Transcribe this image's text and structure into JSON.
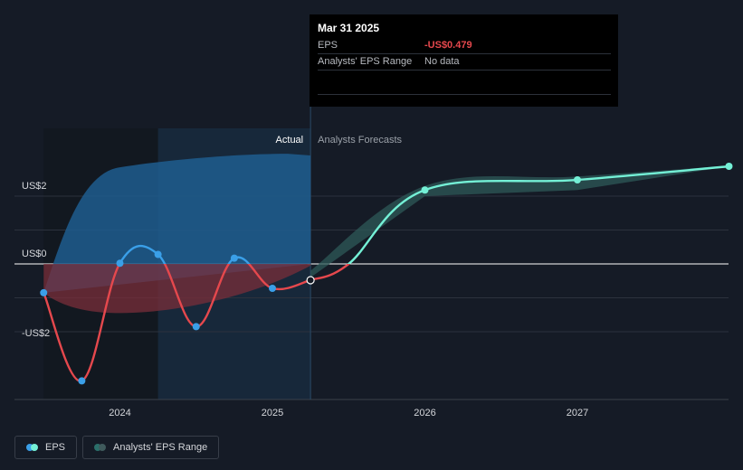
{
  "chart_data": {
    "type": "line",
    "y_axis": {
      "ticks": [
        {
          "value": 2,
          "label": "US$2"
        },
        {
          "value": 0,
          "label": "US$0"
        },
        {
          "value": -2,
          "label": "-US$2"
        }
      ],
      "ylim": [
        -4,
        4
      ]
    },
    "x_axis": {
      "ticks": [
        {
          "value": 2024,
          "label": "2024"
        },
        {
          "value": 2025,
          "label": "2025"
        },
        {
          "value": 2026,
          "label": "2026"
        },
        {
          "value": 2027,
          "label": "2027"
        }
      ],
      "xlim": [
        2023.0,
        2028.0
      ]
    },
    "divider": {
      "x": 2025.25,
      "left_label": "Actual",
      "right_label": "Analysts Forecasts"
    },
    "series": [
      {
        "name": "EPS",
        "color_pos": "#3a9fe8",
        "color_neg": "#e5484d",
        "points": [
          {
            "x": 2023.5,
            "y": -0.85
          },
          {
            "x": 2023.75,
            "y": -3.45
          },
          {
            "x": 2024.0,
            "y": 0.02
          },
          {
            "x": 2024.25,
            "y": 0.28
          },
          {
            "x": 2024.5,
            "y": -1.85
          },
          {
            "x": 2024.75,
            "y": 0.17
          },
          {
            "x": 2025.0,
            "y": -0.72
          },
          {
            "x": 2025.25,
            "y": -0.479
          }
        ]
      },
      {
        "name": "Analysts' EPS Range",
        "color": "#74f0d6",
        "points": [
          {
            "x": 2025.25,
            "y": -0.479
          },
          {
            "x": 2025.5,
            "y": 0.0
          },
          {
            "x": 2026.0,
            "y": 2.18
          },
          {
            "x": 2027.0,
            "y": 2.48
          },
          {
            "x": 2028.0,
            "y": 2.88
          }
        ],
        "band_high": [
          {
            "x": 2025.25,
            "y": -0.2
          },
          {
            "x": 2026.0,
            "y": 2.3
          },
          {
            "x": 2027.0,
            "y": 2.58
          },
          {
            "x": 2028.0,
            "y": 2.9
          }
        ],
        "band_low": [
          {
            "x": 2025.25,
            "y": -0.4
          },
          {
            "x": 2026.0,
            "y": 2.0
          },
          {
            "x": 2027.0,
            "y": 2.18
          },
          {
            "x": 2028.0,
            "y": 2.88
          }
        ]
      }
    ]
  },
  "tooltip": {
    "date": "Mar 31 2025",
    "rows": [
      {
        "label": "EPS",
        "value": "-US$0.479"
      },
      {
        "label": "Analysts' EPS Range",
        "value": "No data"
      }
    ]
  },
  "legend": [
    {
      "label": "EPS"
    },
    {
      "label": "Analysts' EPS Range"
    }
  ],
  "colors": {
    "background": "#151b26",
    "grid": "#2c323d",
    "zero_line": "#ffffff",
    "actual_band": "#1f5d8f",
    "negative_fill": "#7a2e3a"
  }
}
